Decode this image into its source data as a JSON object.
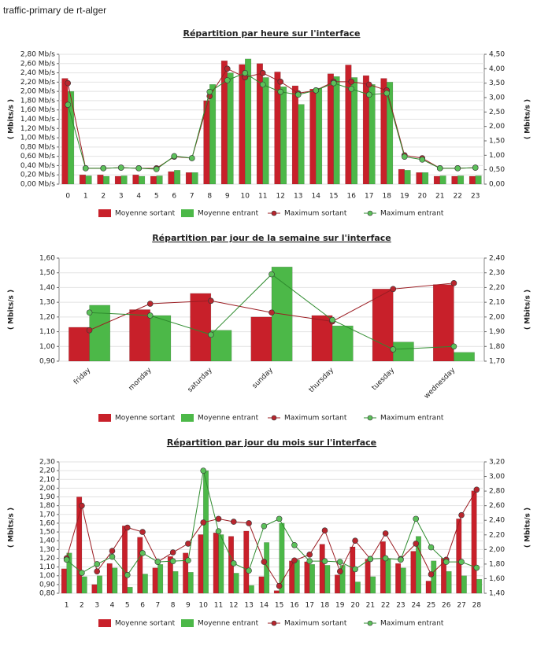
{
  "header": {
    "title": "traffic-primary de rt-alger"
  },
  "chart_data": [
    {
      "type": "bar",
      "title": "Répartition par heure sur l'interface",
      "ylabel": "( Mbits/s )",
      "y2label": "( Mbits/s )",
      "categories": [
        "0",
        "1",
        "2",
        "3",
        "4",
        "5",
        "6",
        "7",
        "8",
        "9",
        "10",
        "11",
        "12",
        "13",
        "14",
        "15",
        "16",
        "17",
        "18",
        "19",
        "20",
        "21",
        "22",
        "23"
      ],
      "series": [
        {
          "name": "Moyenne sortant",
          "color": "#c8202a",
          "values": [
            2.28,
            0.2,
            0.2,
            0.17,
            0.2,
            0.17,
            0.27,
            0.25,
            1.8,
            2.66,
            2.58,
            2.6,
            2.42,
            2.12,
            2.05,
            2.38,
            2.57,
            2.34,
            2.28,
            0.32,
            0.25,
            0.17,
            0.17,
            0.17
          ]
        },
        {
          "name": "Moyenne entrant",
          "color": "#4cb848",
          "values": [
            2.0,
            0.18,
            0.17,
            0.18,
            0.17,
            0.18,
            0.3,
            0.25,
            2.15,
            2.4,
            2.7,
            2.3,
            2.1,
            1.72,
            2.07,
            2.32,
            2.3,
            2.15,
            2.2,
            0.3,
            0.25,
            0.18,
            0.18,
            0.18
          ]
        },
        {
          "name": "Maximum sortant",
          "color": "#9b1c22",
          "axis": "y2",
          "values": [
            3.5,
            0.55,
            0.55,
            0.57,
            0.55,
            0.55,
            0.95,
            0.9,
            3.05,
            4.0,
            3.7,
            3.85,
            3.55,
            3.15,
            3.25,
            3.55,
            3.55,
            3.45,
            3.25,
            1.0,
            0.9,
            0.55,
            0.55,
            0.57
          ]
        },
        {
          "name": "Maximum entrant",
          "color": "#2e8b2e",
          "axis": "y2",
          "values": [
            2.75,
            0.55,
            0.55,
            0.57,
            0.55,
            0.52,
            0.97,
            0.9,
            3.2,
            3.6,
            3.85,
            3.45,
            3.2,
            3.1,
            3.25,
            3.5,
            3.3,
            3.1,
            3.15,
            0.95,
            0.85,
            0.55,
            0.55,
            0.57
          ]
        }
      ],
      "ylim": [
        0,
        2.8
      ],
      "yticks": [
        {
          "value": 0,
          "label": "0,00 Mb/s"
        },
        {
          "value": 0.2,
          "label": "0,20 Mb/s"
        },
        {
          "value": 0.4,
          "label": "0,40 Mb/s"
        },
        {
          "value": 0.6,
          "label": "0,60 Mb/s"
        },
        {
          "value": 0.8,
          "label": "0,80 Mb/s"
        },
        {
          "value": 1.0,
          "label": "1,00 Mb/s"
        },
        {
          "value": 1.2,
          "label": "1,20 Mb/s"
        },
        {
          "value": 1.4,
          "label": "1,40 Mb/s"
        },
        {
          "value": 1.6,
          "label": "1,60 Mb/s"
        },
        {
          "value": 1.8,
          "label": "1,80 Mb/s"
        },
        {
          "value": 2.0,
          "label": "2,00 Mb/s"
        },
        {
          "value": 2.2,
          "label": "2,20 Mb/s"
        },
        {
          "value": 2.4,
          "label": "2,40 Mb/s"
        },
        {
          "value": 2.6,
          "label": "2,60 Mb/s"
        },
        {
          "value": 2.8,
          "label": "2,80 Mb/s"
        }
      ],
      "y2lim": [
        0,
        4.5
      ],
      "y2ticks": [
        {
          "value": 0,
          "label": "0,00"
        },
        {
          "value": 0.5,
          "label": "0,50"
        },
        {
          "value": 1.0,
          "label": "1,00"
        },
        {
          "value": 1.5,
          "label": "1,50"
        },
        {
          "value": 2.0,
          "label": "2,00"
        },
        {
          "value": 2.5,
          "label": "2,50"
        },
        {
          "value": 3.0,
          "label": "3,00"
        },
        {
          "value": 3.5,
          "label": "3,50"
        },
        {
          "value": 4.0,
          "label": "4,00"
        },
        {
          "value": 4.5,
          "label": "4,50"
        }
      ],
      "grid": true,
      "legend": "bottom"
    },
    {
      "type": "bar",
      "title": "Répartition par jour de la semaine sur l'interface",
      "ylabel": "( Mbits/s )",
      "y2label": "( Mbits/s )",
      "categories": [
        "friday",
        "monday",
        "saturday",
        "sunday",
        "thursday",
        "tuesday",
        "wednesday"
      ],
      "series": [
        {
          "name": "Moyenne sortant",
          "color": "#c8202a",
          "values": [
            1.13,
            1.25,
            1.36,
            1.2,
            1.21,
            1.39,
            1.42
          ]
        },
        {
          "name": "Moyenne entrant",
          "color": "#4cb848",
          "values": [
            1.28,
            1.21,
            1.11,
            1.54,
            1.14,
            1.03,
            0.96
          ]
        },
        {
          "name": "Maximum sortant",
          "color": "#9b1c22",
          "axis": "y2",
          "values": [
            1.91,
            2.09,
            2.11,
            2.03,
            1.97,
            2.19,
            2.23
          ]
        },
        {
          "name": "Maximum entrant",
          "color": "#2e8b2e",
          "axis": "y2",
          "values": [
            2.03,
            2.01,
            1.88,
            2.29,
            1.98,
            1.78,
            1.8
          ]
        }
      ],
      "ylim": [
        0.9,
        1.6
      ],
      "yticks": [
        {
          "value": 0.9,
          "label": "0,90"
        },
        {
          "value": 1.0,
          "label": "1,00"
        },
        {
          "value": 1.1,
          "label": "1,10"
        },
        {
          "value": 1.2,
          "label": "1,20"
        },
        {
          "value": 1.3,
          "label": "1,30"
        },
        {
          "value": 1.4,
          "label": "1,40"
        },
        {
          "value": 1.5,
          "label": "1,50"
        },
        {
          "value": 1.6,
          "label": "1,60"
        }
      ],
      "y2lim": [
        1.7,
        2.4
      ],
      "y2ticks": [
        {
          "value": 1.7,
          "label": "1,70"
        },
        {
          "value": 1.8,
          "label": "1,80"
        },
        {
          "value": 1.9,
          "label": "1,90"
        },
        {
          "value": 2.0,
          "label": "2,00"
        },
        {
          "value": 2.1,
          "label": "2,10"
        },
        {
          "value": 2.2,
          "label": "2,20"
        },
        {
          "value": 2.3,
          "label": "2,30"
        },
        {
          "value": 2.4,
          "label": "2,40"
        }
      ],
      "grid": true,
      "legend": "bottom"
    },
    {
      "type": "bar",
      "title": "Répartition par jour du mois sur l'interface",
      "ylabel": "( Mbits/s )",
      "y2label": "( Mbits/s )",
      "categories": [
        "1",
        "2",
        "3",
        "4",
        "5",
        "6",
        "7",
        "8",
        "9",
        "10",
        "11",
        "12",
        "13",
        "14",
        "15",
        "16",
        "17",
        "18",
        "19",
        "20",
        "21",
        "22",
        "23",
        "24",
        "25",
        "26",
        "27",
        "28"
      ],
      "series": [
        {
          "name": "Moyenne sortant",
          "color": "#c8202a",
          "values": [
            1.08,
            1.9,
            0.9,
            1.14,
            1.57,
            1.44,
            1.09,
            1.22,
            1.26,
            1.47,
            1.49,
            1.45,
            1.51,
            0.99,
            0.83,
            1.17,
            1.16,
            1.36,
            1.01,
            1.33,
            1.19,
            1.39,
            1.14,
            1.28,
            0.94,
            1.2,
            1.65,
            1.97
          ]
        },
        {
          "name": "Moyenne entrant",
          "color": "#4cb848",
          "values": [
            1.26,
            0.99,
            1.0,
            1.09,
            0.87,
            1.02,
            1.13,
            1.05,
            1.04,
            2.2,
            1.47,
            1.03,
            0.89,
            1.38,
            1.6,
            1.18,
            1.13,
            1.12,
            1.12,
            0.93,
            0.99,
            1.19,
            1.09,
            1.45,
            1.17,
            1.05,
            1.0,
            0.96
          ]
        },
        {
          "name": "Maximum sortant",
          "color": "#9b1c22",
          "axis": "y2",
          "values": [
            1.88,
            2.6,
            1.7,
            1.98,
            2.3,
            2.24,
            1.83,
            1.96,
            2.08,
            2.37,
            2.42,
            2.38,
            2.36,
            1.83,
            1.5,
            1.85,
            1.93,
            2.26,
            1.7,
            2.12,
            1.87,
            2.22,
            1.87,
            2.08,
            1.66,
            1.86,
            2.47,
            2.82
          ]
        },
        {
          "name": "Maximum entrant",
          "color": "#2e8b2e",
          "axis": "y2",
          "values": [
            1.86,
            1.68,
            1.8,
            1.9,
            1.65,
            1.95,
            1.83,
            1.84,
            1.85,
            3.08,
            2.25,
            1.81,
            1.71,
            2.32,
            2.42,
            2.06,
            1.84,
            1.84,
            1.83,
            1.73,
            1.87,
            1.88,
            1.86,
            2.42,
            2.03,
            1.83,
            1.83,
            1.75
          ]
        }
      ],
      "ylim": [
        0.8,
        2.3
      ],
      "yticks": [
        {
          "value": 0.8,
          "label": "0,80"
        },
        {
          "value": 0.9,
          "label": "0,90"
        },
        {
          "value": 1.0,
          "label": "1,00"
        },
        {
          "value": 1.1,
          "label": "1,10"
        },
        {
          "value": 1.2,
          "label": "1,20"
        },
        {
          "value": 1.3,
          "label": "1,30"
        },
        {
          "value": 1.4,
          "label": "1,40"
        },
        {
          "value": 1.5,
          "label": "1,50"
        },
        {
          "value": 1.6,
          "label": "1,60"
        },
        {
          "value": 1.7,
          "label": "1,70"
        },
        {
          "value": 1.8,
          "label": "1,80"
        },
        {
          "value": 1.9,
          "label": "1,90"
        },
        {
          "value": 2.0,
          "label": "2,00"
        },
        {
          "value": 2.1,
          "label": "2,10"
        },
        {
          "value": 2.2,
          "label": "2,20"
        },
        {
          "value": 2.3,
          "label": "2,30"
        }
      ],
      "y2lim": [
        1.4,
        3.2
      ],
      "y2ticks": [
        {
          "value": 1.4,
          "label": "1,40"
        },
        {
          "value": 1.6,
          "label": "1,60"
        },
        {
          "value": 1.8,
          "label": "1,80"
        },
        {
          "value": 2.0,
          "label": "2,00"
        },
        {
          "value": 2.2,
          "label": "2,20"
        },
        {
          "value": 2.4,
          "label": "2,40"
        },
        {
          "value": 2.6,
          "label": "2,60"
        },
        {
          "value": 2.8,
          "label": "2,80"
        },
        {
          "value": 3.0,
          "label": "3,00"
        },
        {
          "value": 3.2,
          "label": "3,20"
        }
      ],
      "grid": true,
      "legend": "bottom"
    }
  ]
}
